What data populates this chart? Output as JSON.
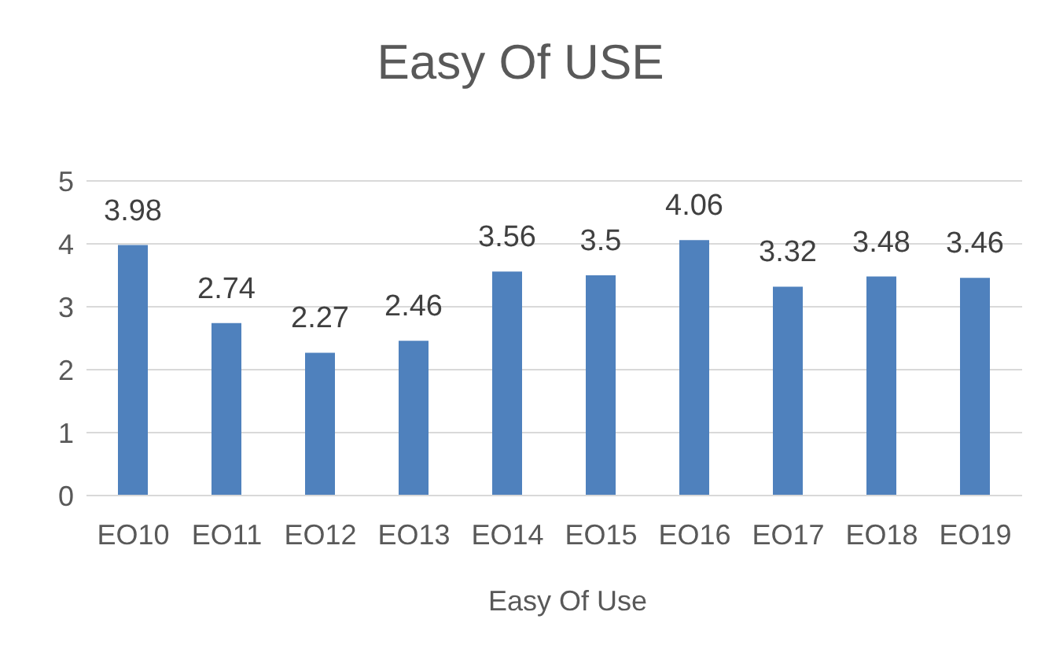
{
  "chart_data": {
    "type": "bar",
    "title": "Easy Of USE",
    "xlabel": "Easy Of Use",
    "categories": [
      "EO10",
      "EO11",
      "EO12",
      "EO13",
      "EO14",
      "EO15",
      "EO16",
      "EO17",
      "EO18",
      "EO19"
    ],
    "values": [
      3.98,
      2.74,
      2.27,
      2.46,
      3.56,
      3.5,
      4.06,
      3.32,
      3.48,
      3.46
    ],
    "color": "#4f81bd",
    "ylim": [
      0,
      5
    ],
    "yticks": [
      0,
      1,
      2,
      3,
      4,
      5
    ],
    "grid": "y",
    "data_labels": true
  }
}
